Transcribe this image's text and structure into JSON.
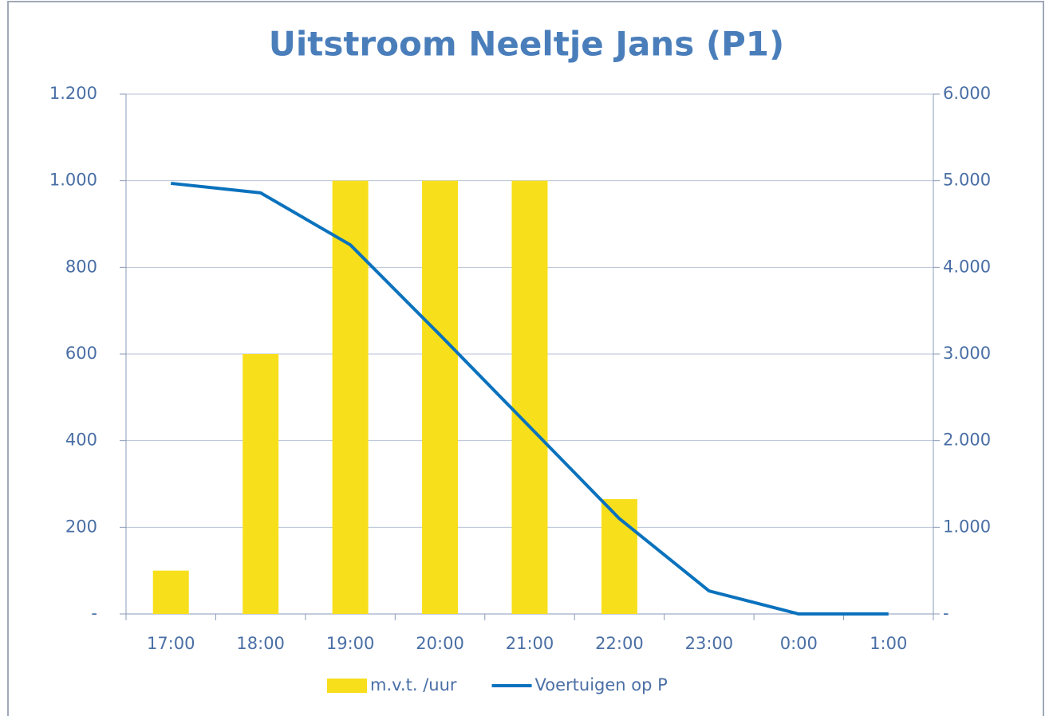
{
  "chart_data": {
    "type": "bar+line",
    "title": "Uitstroom Neeltje Jans (P1)",
    "categories": [
      "17:00",
      "18:00",
      "19:00",
      "20:00",
      "21:00",
      "22:00",
      "23:00",
      "0:00",
      "1:00"
    ],
    "series": [
      {
        "name": "m.v.t. /uur",
        "type": "bar",
        "color": "#f8df1c",
        "axis": "y",
        "values": [
          100,
          600,
          1000,
          1000,
          1000,
          265,
          0,
          0,
          0
        ]
      },
      {
        "name": "Voertuigen op P",
        "type": "line",
        "color": "#0a72bd",
        "axis": "y2",
        "values": [
          4970,
          4860,
          4260,
          3220,
          2160,
          1100,
          265,
          0,
          0
        ]
      }
    ],
    "ylim": [
      0,
      1200
    ],
    "yticks": [
      {
        "value": 0,
        "label": "-"
      },
      200,
      400,
      600,
      800,
      {
        "value": 1000,
        "label": "1.000"
      },
      {
        "value": 1200,
        "label": "1.200"
      }
    ],
    "y2lim": [
      0,
      6000
    ],
    "y2ticks": [
      {
        "value": 0,
        "label": "-"
      },
      {
        "value": 1000,
        "label": "1.000"
      },
      {
        "value": 2000,
        "label": "2.000"
      },
      {
        "value": 3000,
        "label": "3.000"
      },
      {
        "value": 4000,
        "label": "4.000"
      },
      {
        "value": 5000,
        "label": "5.000"
      },
      {
        "value": 6000,
        "label": "6.000"
      }
    ],
    "grid": true,
    "legend": "bottom"
  }
}
